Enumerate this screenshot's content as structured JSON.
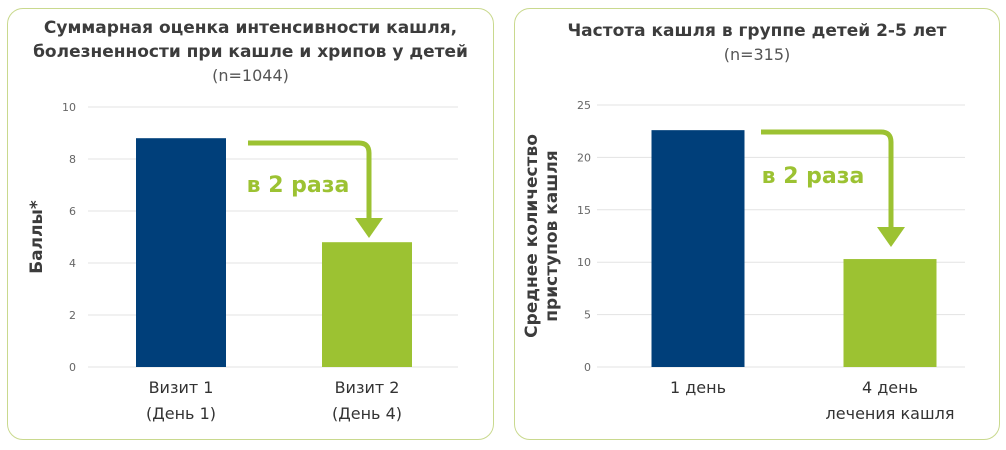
{
  "chart_data": [
    {
      "type": "bar",
      "title": "Суммарная оценка интенсивности кашля, болезненности при кашле и хрипов у детей",
      "title_lines": [
        "Суммарная оценка интенсивности кашля,",
        "болезненности при кашле и хрипов у детей"
      ],
      "subtitle": "(n=1044)",
      "ylabel": "Баллы*",
      "ylim": [
        0,
        10
      ],
      "yticks": [
        "0",
        "2",
        "4",
        "6",
        "8",
        "10"
      ],
      "categories": [
        [
          "Визит 1",
          "(День 1)"
        ],
        [
          "Визит 2",
          "(День 4)"
        ]
      ],
      "values": [
        8.8,
        4.8
      ],
      "colors": [
        "#003f7a",
        "#9cc232"
      ],
      "annotation": "в 2 раза",
      "grid": true
    },
    {
      "type": "bar",
      "title": "Частота кашля в группе детей 2-5 лет",
      "title_lines": [
        "Частота кашля в группе детей 2-5 лет"
      ],
      "subtitle": "(n=315)",
      "ylabel": "Среднее количество приступов кашля",
      "ylabel_lines": [
        "Среднее количество",
        "приступов кашля"
      ],
      "ylim": [
        0,
        25
      ],
      "yticks": [
        "0",
        "5",
        "10",
        "15",
        "20",
        "25"
      ],
      "categories": [
        [
          "1 день"
        ],
        [
          "4 день",
          "лечения кашля"
        ]
      ],
      "values": [
        22.6,
        10.3
      ],
      "colors": [
        "#003f7a",
        "#9cc232"
      ],
      "annotation": "в 2 раза",
      "grid": true
    }
  ],
  "colors": {
    "border": "#c9d98e",
    "arrow": "#9cc232",
    "grid": "#e3e3e3"
  }
}
